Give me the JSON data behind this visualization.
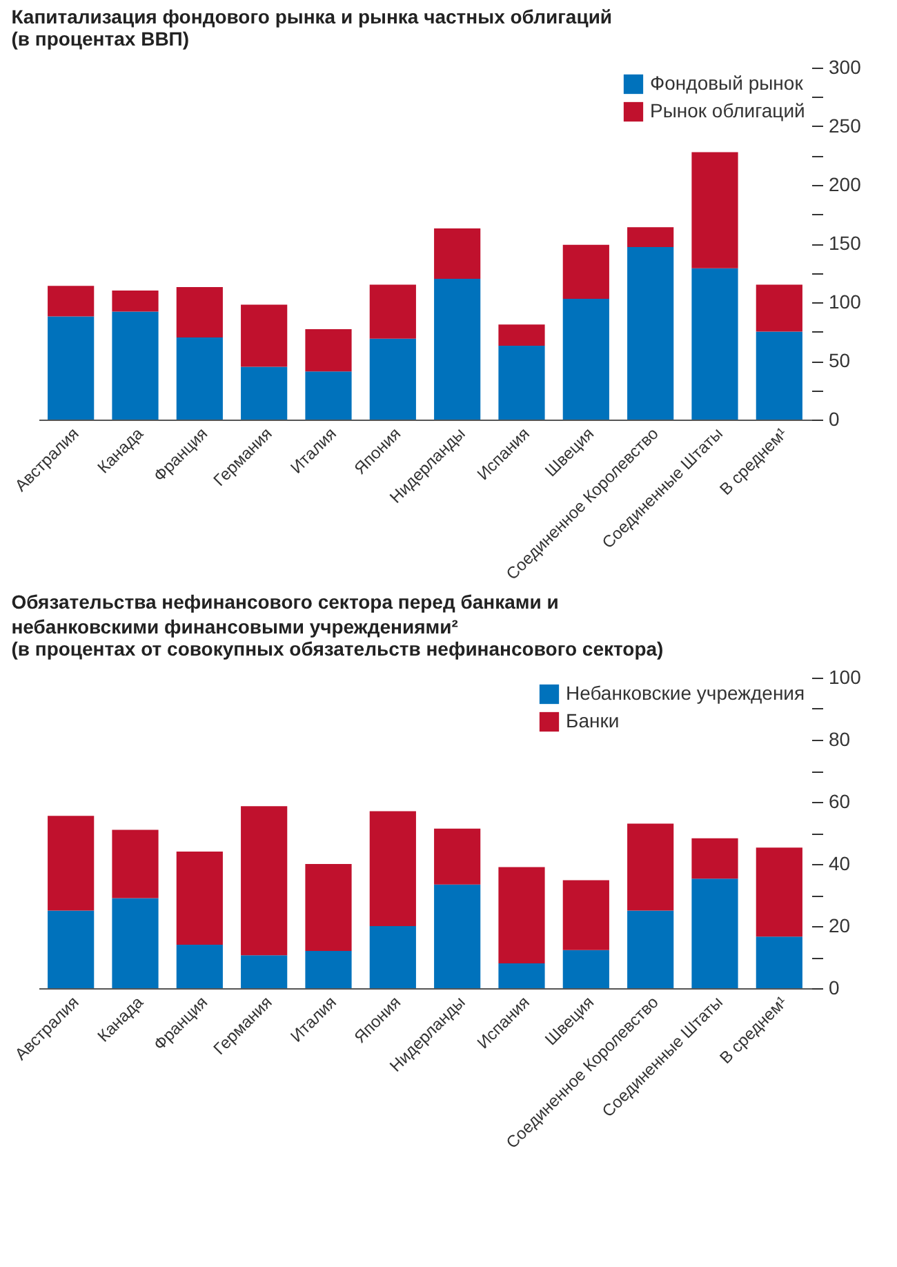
{
  "chart_data": [
    {
      "type": "bar",
      "title": "Капитализация фондового рынка и рынка частных облигаций",
      "subtitle": "(в процентах ВВП)",
      "stacked": true,
      "legend": "top right",
      "grid": false,
      "categories": [
        "Австралия",
        "Канада",
        "Франция",
        "Германия",
        "Италия",
        "Япония",
        "Нидерланды",
        "Испания",
        "Швеция",
        "Соединенное Королевство",
        "Соединенные Штаты",
        "В среднем¹"
      ],
      "series": [
        {
          "name": "Фондовый рынок",
          "color": "#0072bc",
          "values": [
            88,
            92,
            70,
            45,
            41,
            69,
            120,
            63,
            103,
            147,
            129,
            75
          ]
        },
        {
          "name": "Рынок облигаций",
          "color": "#c0112d",
          "values": [
            26,
            18,
            43,
            53,
            36,
            46,
            43,
            18,
            46,
            17,
            99,
            40
          ]
        }
      ],
      "ylim": [
        0,
        300
      ],
      "yticks": [
        0,
        {
          "value": 25,
          "label": null
        },
        50,
        {
          "value": 75,
          "label": null
        },
        100,
        {
          "value": 125,
          "label": null
        },
        150,
        {
          "value": 175,
          "label": null
        },
        200,
        {
          "value": 225,
          "label": null
        },
        250,
        {
          "value": 275,
          "label": null
        },
        300
      ]
    },
    {
      "type": "bar",
      "title": "Обязательства нефинансового сектора перед банками и небанковскими финансовыми учреждениями²",
      "subtitle": "(в процентах от совокупных обязательств нефинансового сектора)",
      "stacked": true,
      "legend": "top right",
      "grid": false,
      "categories": [
        "Австралия",
        "Канада",
        "Франция",
        "Германия",
        "Италия",
        "Япония",
        "Нидерланды",
        "Испания",
        "Швеция",
        "Соединенное Королевство",
        "Соединенные Штаты",
        "В среднем¹"
      ],
      "series": [
        {
          "name": "Небанковские учреждения",
          "color": "#0072bc",
          "values": [
            25,
            29,
            14,
            10.6,
            12,
            20,
            33.4,
            8,
            12.3,
            25,
            35.3,
            16.6
          ]
        },
        {
          "name": "Банки",
          "color": "#c0112d",
          "values": [
            30.5,
            22,
            30,
            48,
            28,
            37,
            18,
            31,
            22.5,
            28,
            13,
            28.7
          ]
        }
      ],
      "ylim": [
        0,
        100
      ],
      "yticks": [
        0,
        {
          "value": 10,
          "label": null
        },
        20,
        {
          "value": 30,
          "label": null
        },
        40,
        {
          "value": 50,
          "label": null
        },
        60,
        {
          "value": 70,
          "label": null
        },
        80,
        {
          "value": 90,
          "label": null
        },
        100
      ]
    }
  ]
}
